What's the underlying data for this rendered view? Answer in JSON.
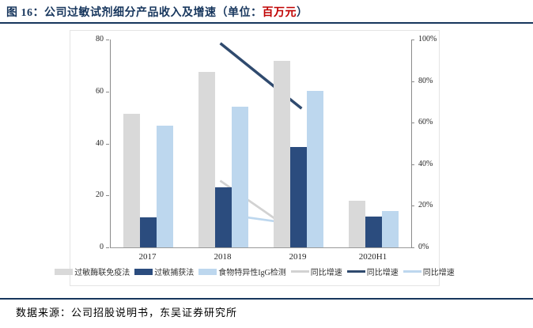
{
  "header": {
    "title_prefix": "图 16：公司过敏试剂细分产品收入及增速（单位：",
    "title_unit": "百万元",
    "title_suffix": "）"
  },
  "footer": {
    "source": "数据来源：公司招股说明书，东吴证券研究所"
  },
  "colors": {
    "title_navy": "#17365D",
    "unit_red": "#C00000",
    "rule_navy": "#17365D",
    "axis_gray": "#8A8A8A",
    "bar_gray": "#D9D9D9",
    "bar_navy": "#2B4C7E",
    "bar_lightblue": "#BDD7EE",
    "line_gray": "#D2D2D2",
    "line_navy": "#2F4A6E",
    "line_lightblue": "#BDD7EE"
  },
  "chart_data": {
    "type": "bar+line combo",
    "title": "公司过敏试剂细分产品收入及增速",
    "unit": "百万元",
    "categories": [
      "2017",
      "2018",
      "2019",
      "2020H1"
    ],
    "bar_series": [
      {
        "name": "过敏酶联免疫法",
        "color": "#D9D9D9",
        "axis": "left",
        "values": [
          51.5,
          67.5,
          71.8,
          17.9
        ]
      },
      {
        "name": "过敏捕获法",
        "color": "#2B4C7E",
        "axis": "left",
        "values": [
          11.7,
          23.0,
          38.6,
          11.9
        ]
      },
      {
        "name": "食物特异性IgG检测",
        "color": "#BDD7EE",
        "axis": "left",
        "values": [
          46.8,
          54.1,
          60.2,
          14.0
        ]
      }
    ],
    "line_series": [
      {
        "name": "同比增速",
        "color": "#D2D2D2",
        "axis": "right",
        "stroke": 2.75,
        "points": [
          {
            "x": "2018",
            "y": 31
          },
          {
            "x": "2019",
            "y": 6
          }
        ]
      },
      {
        "name": "同比增速",
        "color": "#2F4A6E",
        "axis": "right",
        "stroke": 3.5,
        "points": [
          {
            "x": "2018",
            "y": 97
          },
          {
            "x": "2019",
            "y": 68
          }
        ]
      },
      {
        "name": "同比增速",
        "color": "#BDD7EE",
        "axis": "right",
        "stroke": 2.75,
        "points": [
          {
            "x": "2018",
            "y": 16
          },
          {
            "x": "2019",
            "y": 11
          }
        ]
      }
    ],
    "left_axis": {
      "min": 0,
      "max": 80,
      "ticks": [
        "0",
        "20",
        "40",
        "60",
        "80"
      ]
    },
    "right_axis": {
      "min": 0,
      "max": 100,
      "ticks": [
        "0%",
        "20%",
        "40%",
        "60%",
        "80%",
        "100%"
      ]
    },
    "legend_position": "bottom",
    "grid": false,
    "legend": [
      {
        "swatch": "bar",
        "color": "#D9D9D9",
        "label": "过敏酶联免疫法"
      },
      {
        "swatch": "bar",
        "color": "#2B4C7E",
        "label": "过敏捕获法"
      },
      {
        "swatch": "bar",
        "color": "#BDD7EE",
        "label": "食物特异性IgG检测"
      },
      {
        "swatch": "line",
        "color": "#D2D2D2",
        "label": "同比增速"
      },
      {
        "swatch": "line",
        "color": "#2F4A6E",
        "label": "同比增速"
      },
      {
        "swatch": "line",
        "color": "#BDD7EE",
        "label": "同比增速"
      }
    ]
  }
}
